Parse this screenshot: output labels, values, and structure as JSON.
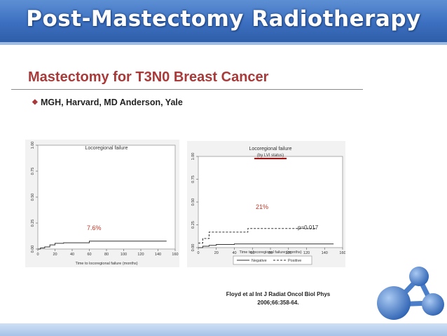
{
  "banner": {
    "title": "Post-Mastectomy Radiotherapy"
  },
  "slide": {
    "title": "Mastectomy for T3N0 Breast Cancer",
    "bullet": "MGH, Harvard, MD Anderson, Yale"
  },
  "citation": {
    "line1": "Floyd et al Int J Radiat Oncol Biol Phys",
    "line2": "2006;66:358-64."
  },
  "colors": {
    "banner": "#3c6fc0",
    "title": "#a83a3a",
    "annotation_red": "#c0392b",
    "underline": "#d00000",
    "logo": "#4a7ec8"
  },
  "chart_data": [
    {
      "type": "line",
      "title": "Locoregional failure",
      "xlabel": "Time to locoregional failure (months)",
      "ylabel": "",
      "xlim": [
        0,
        160
      ],
      "ylim": [
        0,
        1
      ],
      "x_ticks": [
        "0",
        "20",
        "40",
        "60",
        "80",
        "100",
        "120",
        "140",
        "160"
      ],
      "y_ticks": [
        "0.00",
        "0.25",
        "0.50",
        "0.75",
        "1.00"
      ],
      "annotation": "7.6%",
      "series": [
        {
          "x": [
            0,
            3,
            8,
            14,
            20,
            30,
            55,
            60,
            150
          ],
          "y": [
            0,
            0.01,
            0.02,
            0.04,
            0.055,
            0.06,
            0.06,
            0.076,
            0.076
          ]
        }
      ]
    },
    {
      "type": "line",
      "title": "Locoregional failure",
      "subtitle": "(by LVI status)",
      "xlabel": "Time to locoregional failure (months)",
      "ylabel": "",
      "xlim": [
        0,
        160
      ],
      "ylim": [
        0,
        1
      ],
      "x_ticks": [
        "0",
        "20",
        "40",
        "60",
        "80",
        "100",
        "120",
        "140",
        "160"
      ],
      "y_ticks": [
        "0.00",
        "0.25",
        "0.50",
        "0.75",
        "1.00"
      ],
      "annotations": [
        "21%",
        "p=0.017"
      ],
      "legend": [
        "Negative",
        "Positive"
      ],
      "series": [
        {
          "name": "Negative",
          "x": [
            0,
            5,
            12,
            20,
            40,
            150
          ],
          "y": [
            0,
            0.015,
            0.025,
            0.035,
            0.04,
            0.04
          ]
        },
        {
          "name": "Positive",
          "x": [
            0,
            5,
            12,
            55,
            130
          ],
          "y": [
            0.05,
            0.1,
            0.17,
            0.21,
            0.21
          ]
        }
      ]
    }
  ]
}
